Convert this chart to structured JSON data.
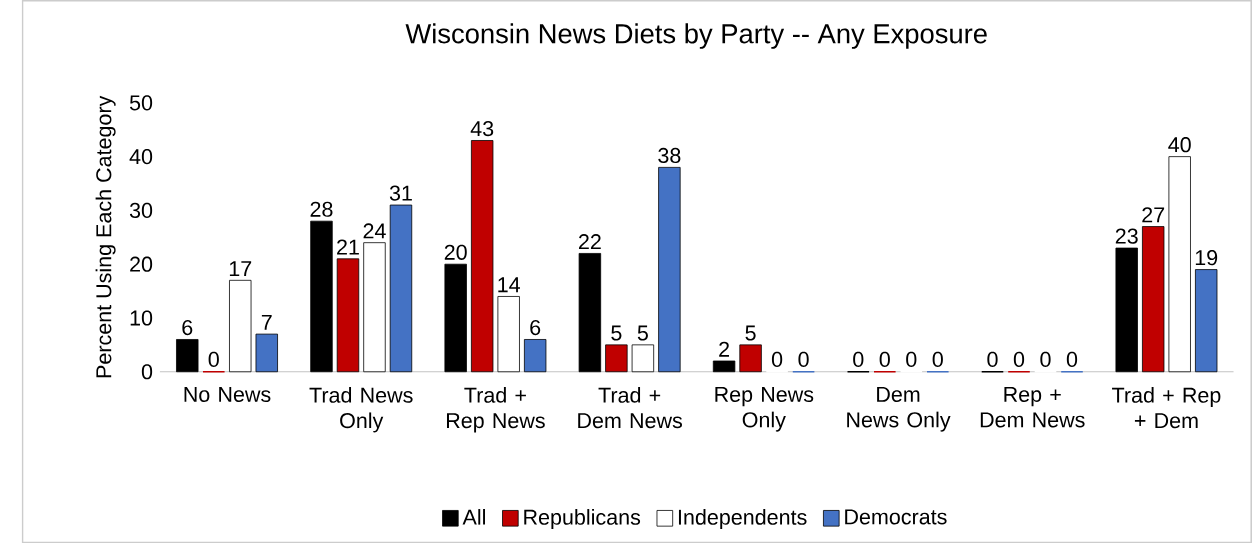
{
  "chart_data": {
    "type": "bar",
    "title": "Wisconsin News Diets by Party -- Any Exposure",
    "ylabel": "Percent Using Each Category",
    "categories": [
      "No News",
      "Trad News Only",
      "Trad + Rep News",
      "Trad + Dem News",
      "Rep News Only",
      "Dem News Only",
      "Rep + Dem News",
      "Trad + Rep + Dem"
    ],
    "series": [
      {
        "name": "All",
        "color": "#000000",
        "values": [
          6,
          28,
          20,
          22,
          2,
          0,
          0,
          23
        ]
      },
      {
        "name": "Republicans",
        "color": "#c00000",
        "values": [
          0,
          21,
          43,
          5,
          5,
          0,
          0,
          27
        ]
      },
      {
        "name": "Independents",
        "color": "#ffffff",
        "values": [
          17,
          24,
          14,
          5,
          0,
          0,
          0,
          40
        ]
      },
      {
        "name": "Democrats",
        "color": "#4472c4",
        "values": [
          7,
          31,
          6,
          38,
          0,
          0,
          0,
          19
        ]
      }
    ],
    "ylim": [
      0,
      50
    ],
    "yticks": [
      0,
      10,
      20,
      30,
      40,
      50
    ],
    "data_labels": true,
    "legend": "bottom",
    "grid": false
  }
}
